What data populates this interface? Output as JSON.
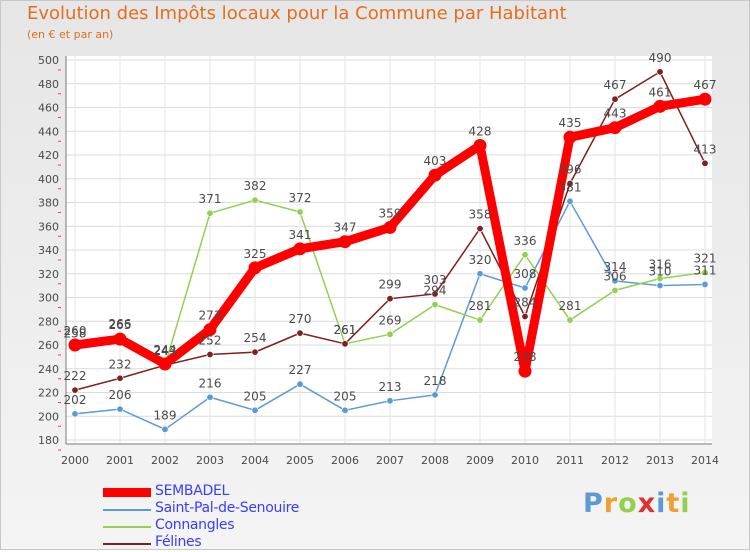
{
  "title": "Evolution des Impôts locaux pour la Commune par Habitant",
  "subtitle": "(en € et par an)",
  "brand": "Proxiti",
  "colors": {
    "title": "#e07020",
    "axis_text": "#4a4a4a",
    "SEMBADEL": "#ff0000",
    "Saint-Pal-de-Senouire": "#5b9bd5",
    "Connangles": "#92d050",
    "Félines": "#7f1f1f"
  },
  "chart_data": {
    "type": "line",
    "title": "Evolution des Impôts locaux pour la Commune par Habitant",
    "subtitle": "(en € et par an)",
    "xlabel": "",
    "ylabel": "",
    "x": [
      2000,
      2001,
      2002,
      2003,
      2004,
      2005,
      2006,
      2007,
      2008,
      2009,
      2010,
      2011,
      2012,
      2013,
      2014
    ],
    "ylim": [
      180,
      500
    ],
    "yticks": [
      180,
      200,
      220,
      240,
      260,
      280,
      300,
      320,
      340,
      360,
      380,
      400,
      420,
      440,
      460,
      480,
      500
    ],
    "grid": true,
    "legend_position": "bottom-left",
    "series": [
      {
        "name": "SEMBADEL",
        "color": "#ff0000",
        "values": [
          260,
          265,
          244,
          273,
          325,
          341,
          347,
          359,
          403,
          428,
          238,
          435,
          443,
          461,
          467
        ]
      },
      {
        "name": "Saint-Pal-de-Senouire",
        "color": "#5b9bd5",
        "values": [
          202,
          206,
          189,
          216,
          205,
          227,
          205,
          213,
          218,
          320,
          308,
          381,
          314,
          310,
          311
        ]
      },
      {
        "name": "Connangles",
        "color": "#92d050",
        "values": [
          258,
          266,
          243,
          371,
          382,
          372,
          261,
          269,
          294,
          281,
          336,
          281,
          306,
          316,
          321
        ]
      },
      {
        "name": "Félines",
        "color": "#7f1f1f",
        "values": [
          222,
          232,
          243,
          252,
          254,
          270,
          261,
          299,
          303,
          358,
          284,
          396,
          467,
          490,
          413
        ]
      }
    ]
  }
}
